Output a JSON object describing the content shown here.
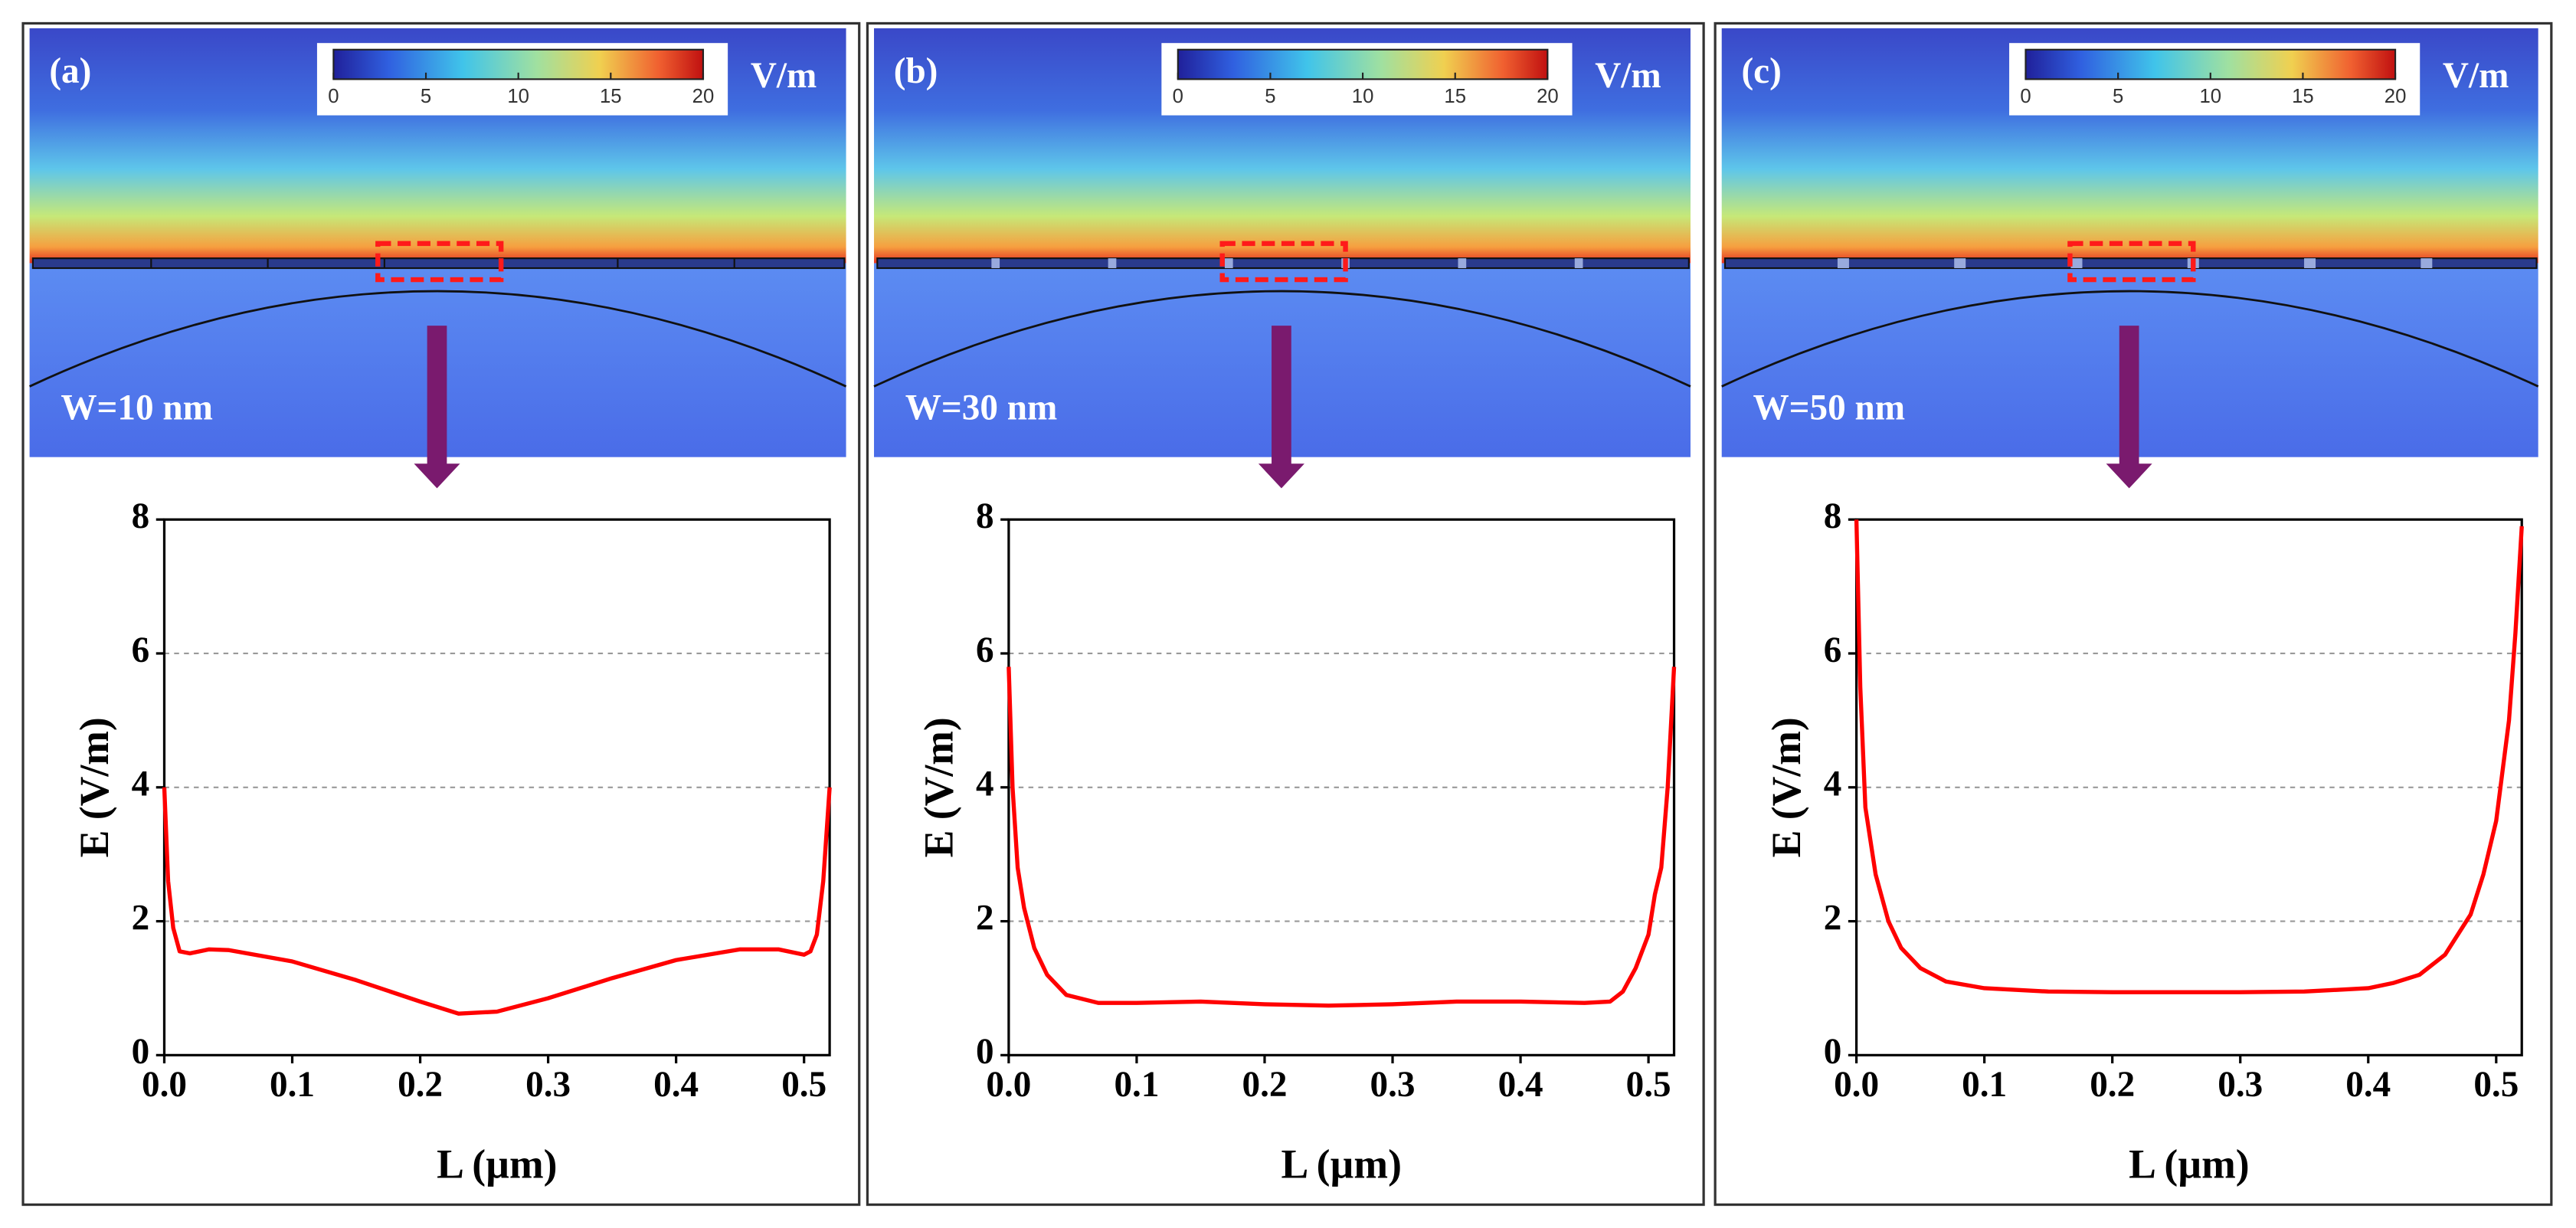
{
  "chart_data": [
    {
      "type": "line",
      "panel_label": "(a)",
      "annotation": "W=10 nm",
      "colorbar_unit": "V/m",
      "colorbar_lim": [
        0,
        20
      ],
      "colorbar_ticks": [
        0,
        5,
        10,
        15,
        20
      ],
      "x_label": "L (µm)",
      "y_label": "E (V/m)",
      "color": "#ff0000",
      "grid": true,
      "xlim": [
        0,
        0.52
      ],
      "xticks": [
        {
          "value": 0,
          "label": "0.0"
        },
        0.1,
        0.2,
        0.3,
        0.4,
        0.5
      ],
      "ylim": [
        0,
        8
      ],
      "yticks": [
        0,
        2,
        4,
        6,
        8
      ],
      "x": [
        0,
        0.003,
        0.007,
        0.012,
        0.02,
        0.035,
        0.05,
        0.1,
        0.15,
        0.2,
        0.23,
        0.26,
        0.3,
        0.35,
        0.4,
        0.45,
        0.48,
        0.5,
        0.505,
        0.51,
        0.515,
        0.52
      ],
      "values": [
        4.0,
        2.6,
        1.9,
        1.55,
        1.52,
        1.58,
        1.57,
        1.4,
        1.12,
        0.8,
        0.62,
        0.65,
        0.85,
        1.15,
        1.42,
        1.58,
        1.58,
        1.5,
        1.55,
        1.8,
        2.6,
        4.0
      ]
    },
    {
      "type": "line",
      "panel_label": "(b)",
      "annotation": "W=30 nm",
      "colorbar_unit": "V/m",
      "colorbar_lim": [
        0,
        20
      ],
      "colorbar_ticks": [
        0,
        5,
        10,
        15,
        20
      ],
      "x_label": "L (µm)",
      "y_label": "E (V/m)",
      "color": "#ff0000",
      "grid": true,
      "xlim": [
        0,
        0.52
      ],
      "xticks": [
        {
          "value": 0,
          "label": "0.0"
        },
        0.1,
        0.2,
        0.3,
        0.4,
        0.5
      ],
      "ylim": [
        0,
        8
      ],
      "yticks": [
        0,
        2,
        4,
        6,
        8
      ],
      "x": [
        0,
        0.003,
        0.007,
        0.012,
        0.02,
        0.03,
        0.045,
        0.07,
        0.1,
        0.15,
        0.2,
        0.25,
        0.3,
        0.35,
        0.4,
        0.45,
        0.47,
        0.48,
        0.49,
        0.5,
        0.505,
        0.51,
        0.515,
        0.52
      ],
      "values": [
        5.8,
        4.0,
        2.8,
        2.2,
        1.6,
        1.2,
        0.9,
        0.78,
        0.78,
        0.8,
        0.76,
        0.74,
        0.76,
        0.8,
        0.8,
        0.78,
        0.8,
        0.95,
        1.3,
        1.8,
        2.4,
        2.8,
        4.0,
        5.8
      ]
    },
    {
      "type": "line",
      "panel_label": "(c)",
      "annotation": "W=50 nm",
      "colorbar_unit": "V/m",
      "colorbar_lim": [
        0,
        20
      ],
      "colorbar_ticks": [
        0,
        5,
        10,
        15,
        20
      ],
      "x_label": "L (µm)",
      "y_label": "E (V/m)",
      "color": "#ff0000",
      "grid": true,
      "xlim": [
        0,
        0.52
      ],
      "xticks": [
        {
          "value": 0,
          "label": "0.0"
        },
        0.1,
        0.2,
        0.3,
        0.4,
        0.5
      ],
      "ylim": [
        0,
        8
      ],
      "yticks": [
        0,
        2,
        4,
        6,
        8
      ],
      "x": [
        0,
        0.003,
        0.007,
        0.015,
        0.025,
        0.035,
        0.05,
        0.07,
        0.1,
        0.15,
        0.2,
        0.3,
        0.35,
        0.4,
        0.42,
        0.44,
        0.46,
        0.48,
        0.49,
        0.5,
        0.51,
        0.515,
        0.52
      ],
      "values": [
        8.0,
        5.5,
        3.7,
        2.7,
        2.0,
        1.6,
        1.3,
        1.1,
        1.0,
        0.95,
        0.94,
        0.94,
        0.95,
        1.0,
        1.08,
        1.2,
        1.5,
        2.1,
        2.7,
        3.5,
        5.0,
        6.3,
        7.9
      ]
    }
  ]
}
